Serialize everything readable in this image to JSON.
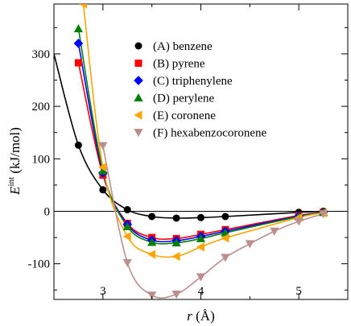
{
  "chart_data": {
    "type": "line",
    "title": "",
    "xlabel": "r (Å)",
    "xlabel_parts": {
      "var": "r",
      "unit": "(Å)"
    },
    "ylabel": "E^int (kJ/mol)",
    "ylabel_parts": {
      "var": "E",
      "sup": "int",
      "unit": "(kJ/mol)"
    },
    "xlim": [
      2.5,
      5.5
    ],
    "ylim": [
      -168,
      395
    ],
    "xticks": [
      3,
      4,
      5
    ],
    "yticks": [
      -100,
      0,
      100,
      200,
      300
    ],
    "grid": false,
    "legend_position": "top-right",
    "zero_line": true,
    "series": [
      {
        "name": "(A) benzene",
        "color": "#000000",
        "marker": "circle",
        "points": [
          [
            2.5,
            300
          ],
          [
            2.75,
            126
          ],
          [
            3.0,
            41
          ],
          [
            3.25,
            3
          ],
          [
            3.5,
            -10
          ],
          [
            3.75,
            -13
          ],
          [
            4.0,
            -12
          ],
          [
            4.25,
            -10
          ],
          [
            5.0,
            -2
          ],
          [
            5.25,
            0
          ]
        ]
      },
      {
        "name": "(B) pyrene",
        "color": "#ff0000",
        "marker": "square",
        "points": [
          [
            2.75,
            283
          ],
          [
            3.0,
            69
          ],
          [
            3.25,
            -23
          ],
          [
            3.5,
            -50
          ],
          [
            3.75,
            -52
          ],
          [
            4.0,
            -44
          ],
          [
            4.25,
            -35
          ],
          [
            5.0,
            -8
          ],
          [
            5.25,
            -2
          ]
        ]
      },
      {
        "name": "(C) triphenylene",
        "color": "#0000ff",
        "marker": "diamond",
        "points": [
          [
            2.75,
            320
          ],
          [
            3.0,
            73
          ],
          [
            3.25,
            -25
          ],
          [
            3.5,
            -55
          ],
          [
            3.75,
            -56
          ],
          [
            4.0,
            -48
          ],
          [
            4.25,
            -38
          ],
          [
            5.0,
            -9
          ],
          [
            5.25,
            -2
          ]
        ]
      },
      {
        "name": "(D) perylene",
        "color": "#008000",
        "marker": "triangle-up",
        "points": [
          [
            2.75,
            348
          ],
          [
            3.0,
            77
          ],
          [
            3.25,
            -29
          ],
          [
            3.5,
            -59
          ],
          [
            3.75,
            -60
          ],
          [
            4.0,
            -52
          ],
          [
            4.25,
            -41
          ],
          [
            5.0,
            -10
          ],
          [
            5.25,
            -2
          ]
        ]
      },
      {
        "name": "(E) coronene",
        "color": "#ffa500",
        "marker": "triangle-left",
        "points": [
          [
            2.8,
            395
          ],
          [
            3.0,
            84
          ],
          [
            3.25,
            -48
          ],
          [
            3.5,
            -82
          ],
          [
            3.75,
            -86
          ],
          [
            4.0,
            -68
          ],
          [
            4.25,
            -51
          ],
          [
            5.0,
            -12
          ],
          [
            5.25,
            -3
          ]
        ]
      },
      {
        "name": "(F) hexabenzocoronene",
        "color": "#bc8f8f",
        "marker": "triangle-down",
        "points": [
          [
            3.0,
            125
          ],
          [
            3.25,
            -98
          ],
          [
            3.5,
            -160
          ],
          [
            3.75,
            -158
          ],
          [
            4.0,
            -125
          ],
          [
            4.25,
            -88
          ],
          [
            4.5,
            -62
          ],
          [
            4.75,
            -38
          ],
          [
            5.0,
            -19
          ],
          [
            5.25,
            -5
          ]
        ]
      }
    ]
  }
}
